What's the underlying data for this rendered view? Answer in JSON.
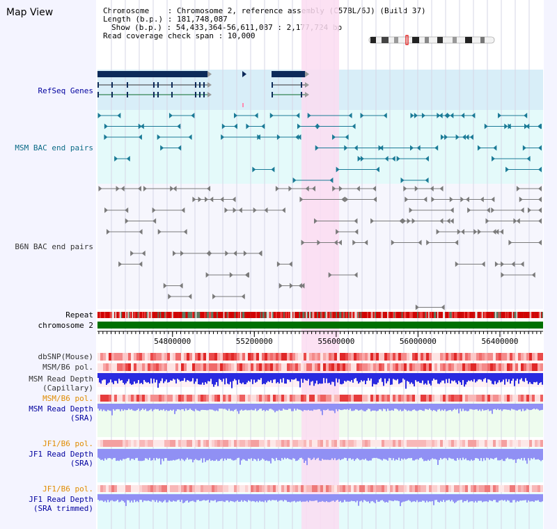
{
  "title": "Map View",
  "header": {
    "chromosome": "Chromosome    : Chromosome 2, reference assembly (C57BL/6J) (Build 37)",
    "length": "Length (b.p.) : 181,748,087",
    "show": "Show (b.p.) : 54,433,364-56,611,087 : 2,177,724 bp",
    "coverage": "Read coverage check span : 10,000"
  },
  "view": {
    "start": 54433364,
    "end": 56611087
  },
  "ruler": {
    "ticks": [
      54800000,
      55200000,
      55600000,
      56000000,
      56400000
    ]
  },
  "track_labels": {
    "refseq": "RefSeq Genes",
    "msm_bac": "MSM BAC end pairs",
    "b6n_bac": "B6N BAC end pairs",
    "repeat": "Repeat",
    "chromosome": "chromosome 2",
    "dbsnp": "dbSNP(Mouse)",
    "msm_pol1": "MSM/B6 pol.",
    "msm_depth_cap": "MSM Read Depth\n(Capillary)",
    "msm_pol2": "MSM/B6 pol.",
    "msm_depth_sra": "MSM Read Depth\n(SRA)",
    "jf1_pol1": "JF1/B6 pol.",
    "jf1_depth_sra": "JF1 Read Depth\n(SRA)",
    "jf1_pol2": "JF1/B6 pol.",
    "jf1_depth_trim": "JF1 Read Depth\n(SRA trimmed)"
  },
  "colors": {
    "refseq_bg": "#d8eef8",
    "gene": "#0c2a5a",
    "bac_bg": "#e4fafa",
    "msm_bac": "#1a7a96",
    "b6n_bac": "#7a7a7a",
    "highlight": "#fbdcf1",
    "chromosome_bar": "#007000",
    "repeat_red": "#d40000",
    "depth_blue": "#2a2ae0",
    "depth_light": "#9090f4",
    "grid": "#d6d6e6"
  }
}
